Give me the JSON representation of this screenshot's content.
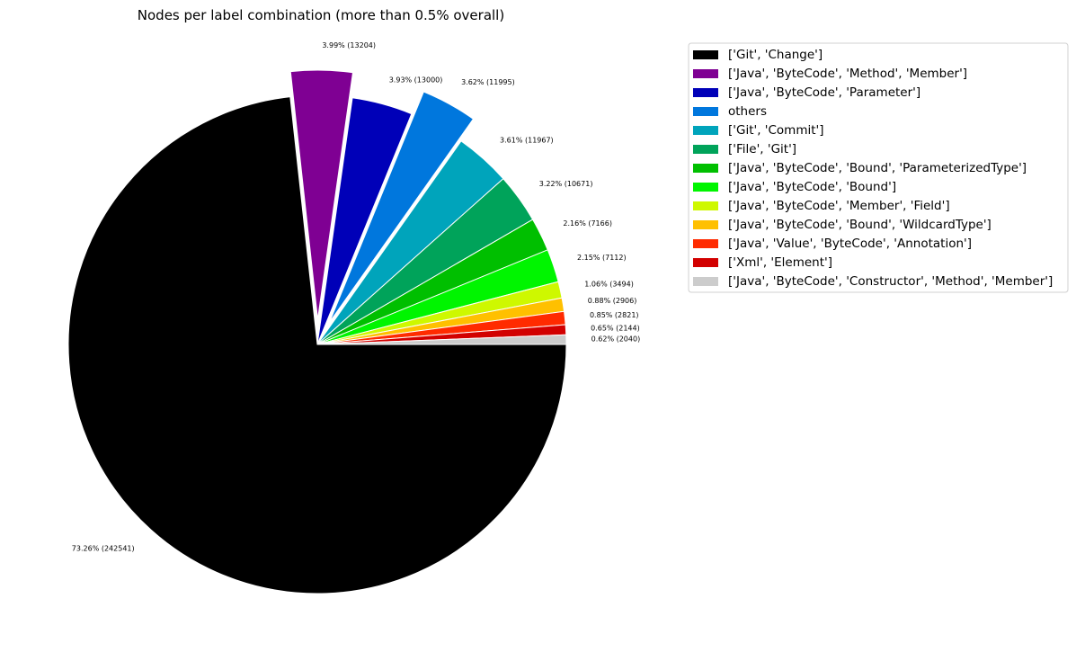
{
  "chart_data": {
    "type": "pie",
    "title": "Nodes per label combination (more than 0.5% overall)",
    "start_angle_deg": 0,
    "direction": "clockwise",
    "legend_position": "upper-right, outside plot",
    "slices": [
      {
        "legend": "['Git', 'Change']",
        "label": "73.26% (242541)",
        "value": 242541,
        "percent": 73.26,
        "color": "#000000",
        "exploded": false
      },
      {
        "legend": "['Java', 'ByteCode', 'Method', 'Member']",
        "label": "3.99% (13204)",
        "value": 13204,
        "percent": 3.99,
        "color": "#7f0093",
        "exploded": true
      },
      {
        "legend": "['Java', 'ByteCode', 'Parameter']",
        "label": "3.93% (13000)",
        "value": 13000,
        "percent": 3.93,
        "color": "#0000b8",
        "exploded": false
      },
      {
        "legend": "others",
        "label": "3.62% (11995)",
        "value": 11995,
        "percent": 3.62,
        "color": "#0077dd",
        "exploded": true
      },
      {
        "legend": "['Git', 'Commit']",
        "label": "3.61% (11967)",
        "value": 11967,
        "percent": 3.61,
        "color": "#00a4bb",
        "exploded": false
      },
      {
        "legend": "['File', 'Git']",
        "label": "3.22% (10671)",
        "value": 10671,
        "percent": 3.22,
        "color": "#00a35a",
        "exploded": false
      },
      {
        "legend": "['Java', 'ByteCode', 'Bound', 'ParameterizedType']",
        "label": "2.16% (7166)",
        "value": 7166,
        "percent": 2.16,
        "color": "#00bf00",
        "exploded": false
      },
      {
        "legend": "['Java', 'ByteCode', 'Bound']",
        "label": "2.15% (7112)",
        "value": 7112,
        "percent": 2.15,
        "color": "#00f500",
        "exploded": false
      },
      {
        "legend": "['Java', 'ByteCode', 'Member', 'Field']",
        "label": "1.06% (3494)",
        "value": 3494,
        "percent": 1.06,
        "color": "#cef800",
        "exploded": false
      },
      {
        "legend": "['Java', 'ByteCode', 'Bound', 'WildcardType']",
        "label": "0.88% (2906)",
        "value": 2906,
        "percent": 0.88,
        "color": "#ffc000",
        "exploded": false
      },
      {
        "legend": "['Java', 'Value', 'ByteCode', 'Annotation']",
        "label": "0.85% (2821)",
        "value": 2821,
        "percent": 0.85,
        "color": "#ff2b00",
        "exploded": false
      },
      {
        "legend": "['Xml', 'Element']",
        "label": "0.65% (2144)",
        "value": 2144,
        "percent": 0.65,
        "color": "#d20000",
        "exploded": false
      },
      {
        "legend": "['Java', 'ByteCode', 'Constructor', 'Method', 'Member']",
        "label": "0.62% (2040)",
        "value": 2040,
        "percent": 0.62,
        "color": "#cccccc",
        "exploded": false
      }
    ]
  }
}
